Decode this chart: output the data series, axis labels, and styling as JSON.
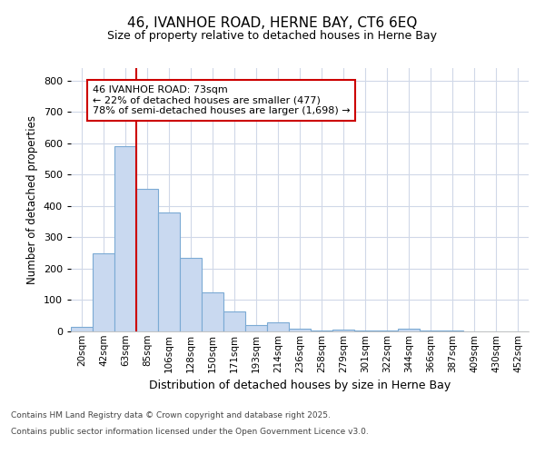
{
  "title_line1": "46, IVANHOE ROAD, HERNE BAY, CT6 6EQ",
  "title_line2": "Size of property relative to detached houses in Herne Bay",
  "xlabel": "Distribution of detached houses by size in Herne Bay",
  "ylabel": "Number of detached properties",
  "bar_color": "#c9d9f0",
  "bar_edge_color": "#7baad4",
  "vline_color": "#cc0000",
  "vline_x_index": 2,
  "annotation_text": "46 IVANHOE ROAD: 73sqm\n← 22% of detached houses are smaller (477)\n78% of semi-detached houses are larger (1,698) →",
  "annotation_box_facecolor": "#ffffff",
  "annotation_box_edgecolor": "#cc0000",
  "footer_line1": "Contains HM Land Registry data © Crown copyright and database right 2025.",
  "footer_line2": "Contains public sector information licensed under the Open Government Licence v3.0.",
  "categories": [
    "20sqm",
    "42sqm",
    "63sqm",
    "85sqm",
    "106sqm",
    "128sqm",
    "150sqm",
    "171sqm",
    "193sqm",
    "214sqm",
    "236sqm",
    "258sqm",
    "279sqm",
    "301sqm",
    "322sqm",
    "344sqm",
    "366sqm",
    "387sqm",
    "409sqm",
    "430sqm",
    "452sqm"
  ],
  "values": [
    15,
    250,
    590,
    455,
    380,
    235,
    125,
    65,
    20,
    30,
    8,
    3,
    5,
    2,
    2,
    8,
    2,
    2,
    1,
    0,
    1
  ],
  "ylim": [
    0,
    840
  ],
  "yticks": [
    0,
    100,
    200,
    300,
    400,
    500,
    600,
    700,
    800
  ],
  "background_color": "#ffffff",
  "plot_bg_color": "#ffffff",
  "grid_color": "#d0d8e8"
}
